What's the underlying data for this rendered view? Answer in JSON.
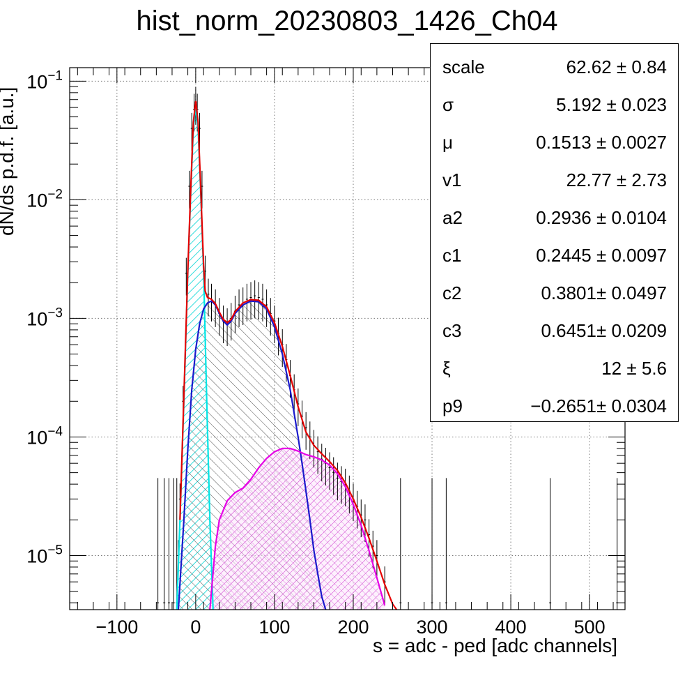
{
  "title": "hist_norm_20230803_1426_Ch04",
  "axes": {
    "xlabel": "s = adc - ped [adc channels]",
    "ylabel": "dN/ds p.d.f. [a.u.]"
  },
  "stats": [
    {
      "name": "scale",
      "value": "62.62 ± 0.84"
    },
    {
      "name": "σ",
      "value": "5.192 ± 0.023"
    },
    {
      "name": "μ",
      "value": "0.1513 ± 0.0027"
    },
    {
      "name": "v1",
      "value": "22.77 ± 2.73"
    },
    {
      "name": "a2",
      "value": "0.2936 ± 0.0104"
    },
    {
      "name": "c1",
      "value": "0.2445 ± 0.0097"
    },
    {
      "name": "c2",
      "value": "0.3801± 0.0497"
    },
    {
      "name": "c3",
      "value": "0.6451± 0.0209"
    },
    {
      "name": "ξ",
      "value": "12 ± 5.6"
    },
    {
      "name": "p9",
      "value": "−0.2651± 0.0304"
    }
  ],
  "chart_data": {
    "type": "line",
    "xlim": [
      -160,
      545
    ],
    "ylim": [
      3.5e-06,
      0.13
    ],
    "yscale": "log",
    "grid": true,
    "xticks": [
      -100,
      0,
      100,
      200,
      300,
      400,
      500
    ],
    "xtick_labels": [
      "−100",
      "0",
      "100",
      "200",
      "300",
      "400",
      "500"
    ],
    "yticks": [
      1e-05,
      0.0001,
      0.001,
      0.01,
      0.1
    ],
    "ytick_labels": [
      {
        "base": "10",
        "exp": "−5"
      },
      {
        "base": "10",
        "exp": "−4"
      },
      {
        "base": "10",
        "exp": "−3"
      },
      {
        "base": "10",
        "exp": "−2"
      },
      {
        "base": "10",
        "exp": "−1"
      }
    ],
    "series": [
      {
        "color": "#00e5e5",
        "hatch": "cyan",
        "x": [
          -24,
          -20,
          -15,
          -10,
          -6,
          -3,
          0,
          3,
          6,
          10,
          14,
          18,
          22
        ],
        "y": [
          3.5e-06,
          2e-05,
          0.0002,
          0.0025,
          0.013,
          0.04,
          0.06,
          0.04,
          0.013,
          0.0025,
          0.0002,
          2e-05,
          3.5e-06
        ]
      },
      {
        "color": "#1a1acc",
        "hatch": "black",
        "x": [
          -22,
          -15,
          -10,
          -5,
          0,
          5,
          10,
          15,
          20,
          25,
          30,
          35,
          40,
          45,
          50,
          60,
          70,
          80,
          90,
          100,
          110,
          120,
          130,
          135,
          140,
          145,
          150,
          155,
          160,
          165
        ],
        "y": [
          3.5e-06,
          2e-05,
          8e-05,
          0.00025,
          0.00055,
          0.0009,
          0.0012,
          0.00135,
          0.0014,
          0.0013,
          0.0011,
          0.00095,
          0.00088,
          0.00095,
          0.0011,
          0.0013,
          0.0014,
          0.00138,
          0.0012,
          0.00085,
          0.0005,
          0.00025,
          0.0001,
          6e-05,
          3.5e-05,
          2e-05,
          1.1e-05,
          7e-06,
          4.5e-06,
          3.5e-06
        ]
      },
      {
        "color": "#e600e6",
        "hatch": "magenta",
        "x": [
          18,
          25,
          30,
          40,
          50,
          60,
          70,
          80,
          90,
          100,
          110,
          120,
          130,
          140,
          150,
          160,
          170,
          180,
          190,
          200,
          210,
          220,
          230,
          240
        ],
        "y": [
          3.5e-06,
          1.2e-05,
          2e-05,
          2.9e-05,
          3.4e-05,
          3.7e-05,
          4.4e-05,
          5.5e-05,
          6.6e-05,
          7.5e-05,
          8e-05,
          8e-05,
          7.6e-05,
          7.1e-05,
          6.8e-05,
          6.4e-05,
          5.8e-05,
          4.9e-05,
          3.8e-05,
          2.7e-05,
          1.8e-05,
          1.1e-05,
          6.5e-06,
          3.8e-06
        ]
      },
      {
        "color": "#e60000",
        "hatch": "none",
        "x": [
          -20,
          -15,
          -10,
          -6,
          -3,
          0,
          3,
          6,
          10,
          12,
          15,
          20,
          25,
          30,
          35,
          40,
          45,
          50,
          60,
          70,
          80,
          90,
          100,
          110,
          120,
          130,
          140,
          150,
          160,
          170,
          180,
          190,
          200,
          210,
          220,
          230,
          240,
          250,
          255
        ],
        "y": [
          2e-05,
          0.00022,
          0.0026,
          0.014,
          0.045,
          0.068,
          0.045,
          0.014,
          0.0028,
          0.0017,
          0.0015,
          0.00145,
          0.00133,
          0.00113,
          0.00098,
          0.00092,
          0.00098,
          0.00114,
          0.00135,
          0.00144,
          0.00142,
          0.00125,
          0.00092,
          0.00058,
          0.00033,
          0.00018,
          0.00011,
          8.5e-05,
          7.2e-05,
          6.2e-05,
          5.2e-05,
          4.1e-05,
          3e-05,
          2.1e-05,
          1.4e-05,
          9e-06,
          5.7e-06,
          3.9e-06,
          3.5e-06
        ]
      }
    ],
    "data_points": {
      "x": [
        -48,
        -40,
        -34,
        -28,
        -24,
        -22,
        -20,
        -16,
        -12,
        -8,
        -5,
        -2,
        0,
        2,
        5,
        8,
        12,
        16,
        20,
        25,
        30,
        35,
        40,
        45,
        50,
        55,
        60,
        65,
        70,
        75,
        80,
        85,
        90,
        95,
        100,
        105,
        110,
        115,
        120,
        125,
        130,
        135,
        140,
        145,
        150,
        155,
        160,
        165,
        170,
        175,
        180,
        185,
        190,
        195,
        200,
        205,
        210,
        215,
        220,
        225,
        230,
        240,
        260,
        300,
        318,
        450,
        535
      ],
      "y": [
        4e-06,
        4e-06,
        4e-06,
        4e-06,
        4e-06,
        1e-05,
        3e-05,
        0.0002,
        0.0024,
        0.013,
        0.04,
        0.058,
        0.066,
        0.058,
        0.04,
        0.013,
        0.0025,
        0.0016,
        0.00145,
        0.0013,
        0.0011,
        0.00095,
        0.0009,
        0.001,
        0.00115,
        0.0013,
        0.00135,
        0.00145,
        0.0015,
        0.00155,
        0.0015,
        0.00145,
        0.0013,
        0.0011,
        0.00095,
        0.00075,
        0.0006,
        0.00045,
        0.00033,
        0.00025,
        0.00019,
        0.00015,
        0.00012,
        0.0001,
        8.5e-05,
        7.5e-05,
        6.5e-05,
        6e-05,
        5.5e-05,
        5e-05,
        4.5e-05,
        4.2e-05,
        4e-05,
        3.5e-05,
        3e-05,
        2.6e-05,
        2.2e-05,
        2e-05,
        1.5e-05,
        1.2e-05,
        1e-05,
        6e-06,
        4e-06,
        4e-06,
        4e-06,
        4e-06,
        4e-06
      ]
    }
  }
}
